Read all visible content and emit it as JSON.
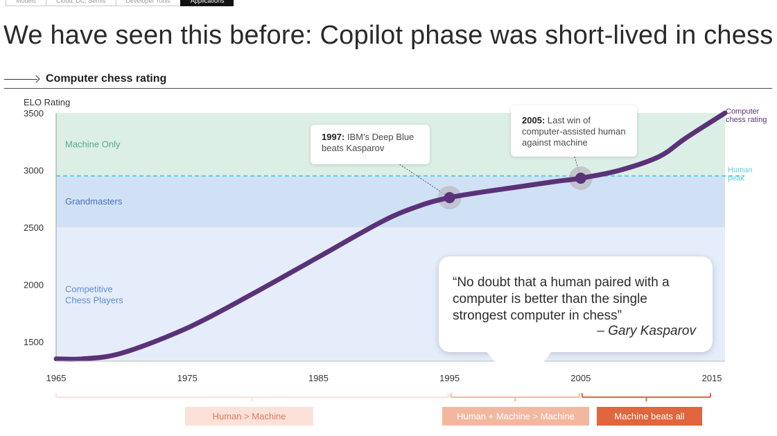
{
  "nav": {
    "tabs": [
      {
        "label": "Models",
        "active": false
      },
      {
        "label": "Cloud, DC, Semis",
        "active": false
      },
      {
        "label": "Developer Tools",
        "active": false
      },
      {
        "label": "Applications",
        "active": true
      }
    ]
  },
  "title": "We have seen this before: Copilot phase was short-lived in chess",
  "section_title": "Computer chess rating",
  "callouts": {
    "c1997": {
      "year": "1997:",
      "text": "IBM's Deep Blue beats Kasparov"
    },
    "c2005": {
      "year": "2005:",
      "text": "Last win of computer-assisted human against machine"
    },
    "quote": "“No doubt that a human paired with a computer is better than the single strongest computer in chess”",
    "quote_author": "– Gary Kasparov"
  },
  "eras": {
    "era1": "Human > Machine",
    "era2": "Human + Machine > Machine",
    "era3": "Machine beats all"
  },
  "colors": {
    "curve": "#5a3278",
    "machine_only_band": "#dcefe6",
    "grandmasters_band": "#d1e1f5",
    "competitive_band": "#e6edfa",
    "human_peak_line": "#5ccfcf",
    "era_light": "#fbe1d8",
    "era_mid": "#f3b7a0",
    "era_dark": "#e0663d"
  },
  "chart_data": {
    "type": "line",
    "ylabel": "ELO Rating",
    "xlim": [
      1965,
      2016
    ],
    "ylim": [
      1330,
      3500
    ],
    "x_ticks": [
      1965,
      1975,
      1985,
      1995,
      2005,
      2015
    ],
    "y_ticks": [
      1500,
      2000,
      2500,
      3000,
      3500
    ],
    "bands": [
      {
        "label": "Machine Only",
        "from": 2950,
        "to": 3500
      },
      {
        "label": "Grandmasters",
        "from": 2500,
        "to": 2950
      },
      {
        "label": "Competitive\nChess Players",
        "from": 1330,
        "to": 2500
      }
    ],
    "reference_line": {
      "label": "Human\npeak",
      "y": 2950
    },
    "series": [
      {
        "name": "Computer\nchess rating",
        "x": [
          1965,
          1967,
          1970,
          1975,
          1980,
          1985,
          1990,
          1993,
          1995,
          1997,
          2000,
          2003,
          2005,
          2008,
          2011,
          2013,
          2016
        ],
        "y": [
          1350,
          1350,
          1400,
          1620,
          1920,
          2240,
          2560,
          2700,
          2760,
          2800,
          2850,
          2900,
          2930,
          3000,
          3120,
          3280,
          3500
        ]
      }
    ],
    "highlights": [
      {
        "x": 1995,
        "y": 2760
      },
      {
        "x": 2005,
        "y": 2930
      }
    ],
    "timeline_segments": [
      {
        "label": "Human > Machine",
        "from": 1965,
        "to": 1995
      },
      {
        "label": "Human + Machine > Machine",
        "from": 1995,
        "to": 2005
      },
      {
        "label": "Machine beats all",
        "from": 2005,
        "to": 2015
      }
    ]
  }
}
